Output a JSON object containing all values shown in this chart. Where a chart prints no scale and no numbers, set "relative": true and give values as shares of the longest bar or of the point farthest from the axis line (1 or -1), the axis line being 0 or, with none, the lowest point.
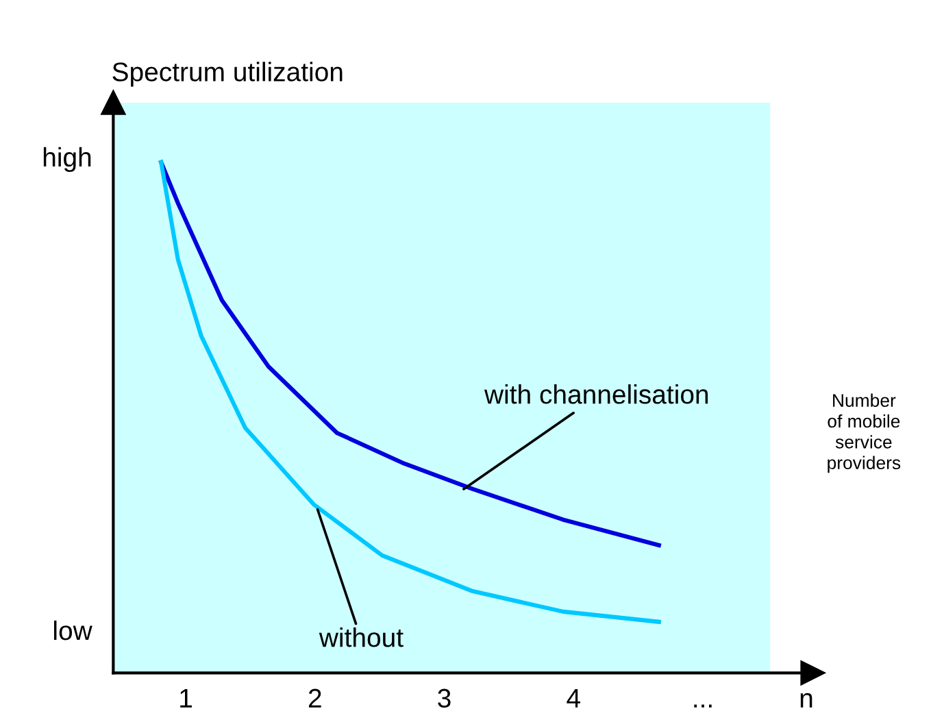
{
  "chart_data": {
    "type": "line",
    "relative": true,
    "ylabel": "Spectrum utilization",
    "xlabel": "Number\nof mobile\nservice\nproviders",
    "xlim": [
      0.44,
      5.85
    ],
    "xticks": [
      1,
      2,
      3,
      4,
      {
        "value": 5.0,
        "label": "..."
      },
      {
        "value": 5.8,
        "label": "n"
      }
    ],
    "grid": false,
    "marker": "none",
    "line_style": "solid",
    "bands": [
      {
        "axis": "x",
        "from": 0.44,
        "to": 5.52,
        "label": null,
        "color": "#ccffff"
      }
    ],
    "series": [
      {
        "color": "#0000dd",
        "x": [
          0.81,
          0.94,
          1.28,
          1.64,
          2.17,
          2.69,
          3.22,
          3.92,
          4.66
        ],
        "values": [
          1,
          0.92,
          0.73,
          0.6,
          0.47,
          0.41,
          0.36,
          0.3,
          0.25
        ]
      },
      {
        "color": "#00c8ff",
        "x": [
          0.81,
          0.94,
          1.12,
          1.46,
          1.99,
          2.52,
          3.22,
          3.92,
          4.66
        ],
        "values": [
          1,
          0.81,
          0.66,
          0.48,
          0.33,
          0.23,
          0.16,
          0.12,
          0.1
        ]
      }
    ],
    "annotations": [
      "high",
      "low",
      {
        "text": "with channelisation",
        "x": 3.15,
        "y": 0.36
      },
      {
        "text": "without",
        "x": 2.02,
        "y": 0.32
      }
    ]
  }
}
